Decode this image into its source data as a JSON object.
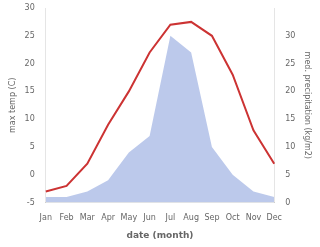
{
  "chart_data": {
    "type": "line",
    "xlabel": "date (month)",
    "ylabel": "max temp (C)",
    "y2label": "med. precipitation (kg/m2)",
    "categories": [
      "Jan",
      "Feb",
      "Mar",
      "Apr",
      "May",
      "Jun",
      "Jul",
      "Aug",
      "Sep",
      "Oct",
      "Nov",
      "Dec"
    ],
    "series": [
      {
        "type": "area",
        "axis": "y2",
        "color": "#b0c0e8",
        "values": [
          1,
          1,
          2,
          4,
          9,
          12,
          30,
          27,
          10,
          5,
          2,
          1
        ]
      },
      {
        "type": "line",
        "color": "#cc3333",
        "values": [
          -3,
          -2,
          2,
          9,
          15,
          22,
          27,
          27.5,
          25,
          18,
          8,
          2
        ]
      }
    ],
    "ylim": [
      -5,
      30
    ],
    "yticks": [
      -5,
      0,
      5,
      10,
      15,
      20,
      25,
      30
    ],
    "y2lim": [
      0,
      35
    ],
    "y2ticks": [
      0,
      5,
      10,
      15,
      20,
      25,
      30
    ],
    "grid": false
  }
}
